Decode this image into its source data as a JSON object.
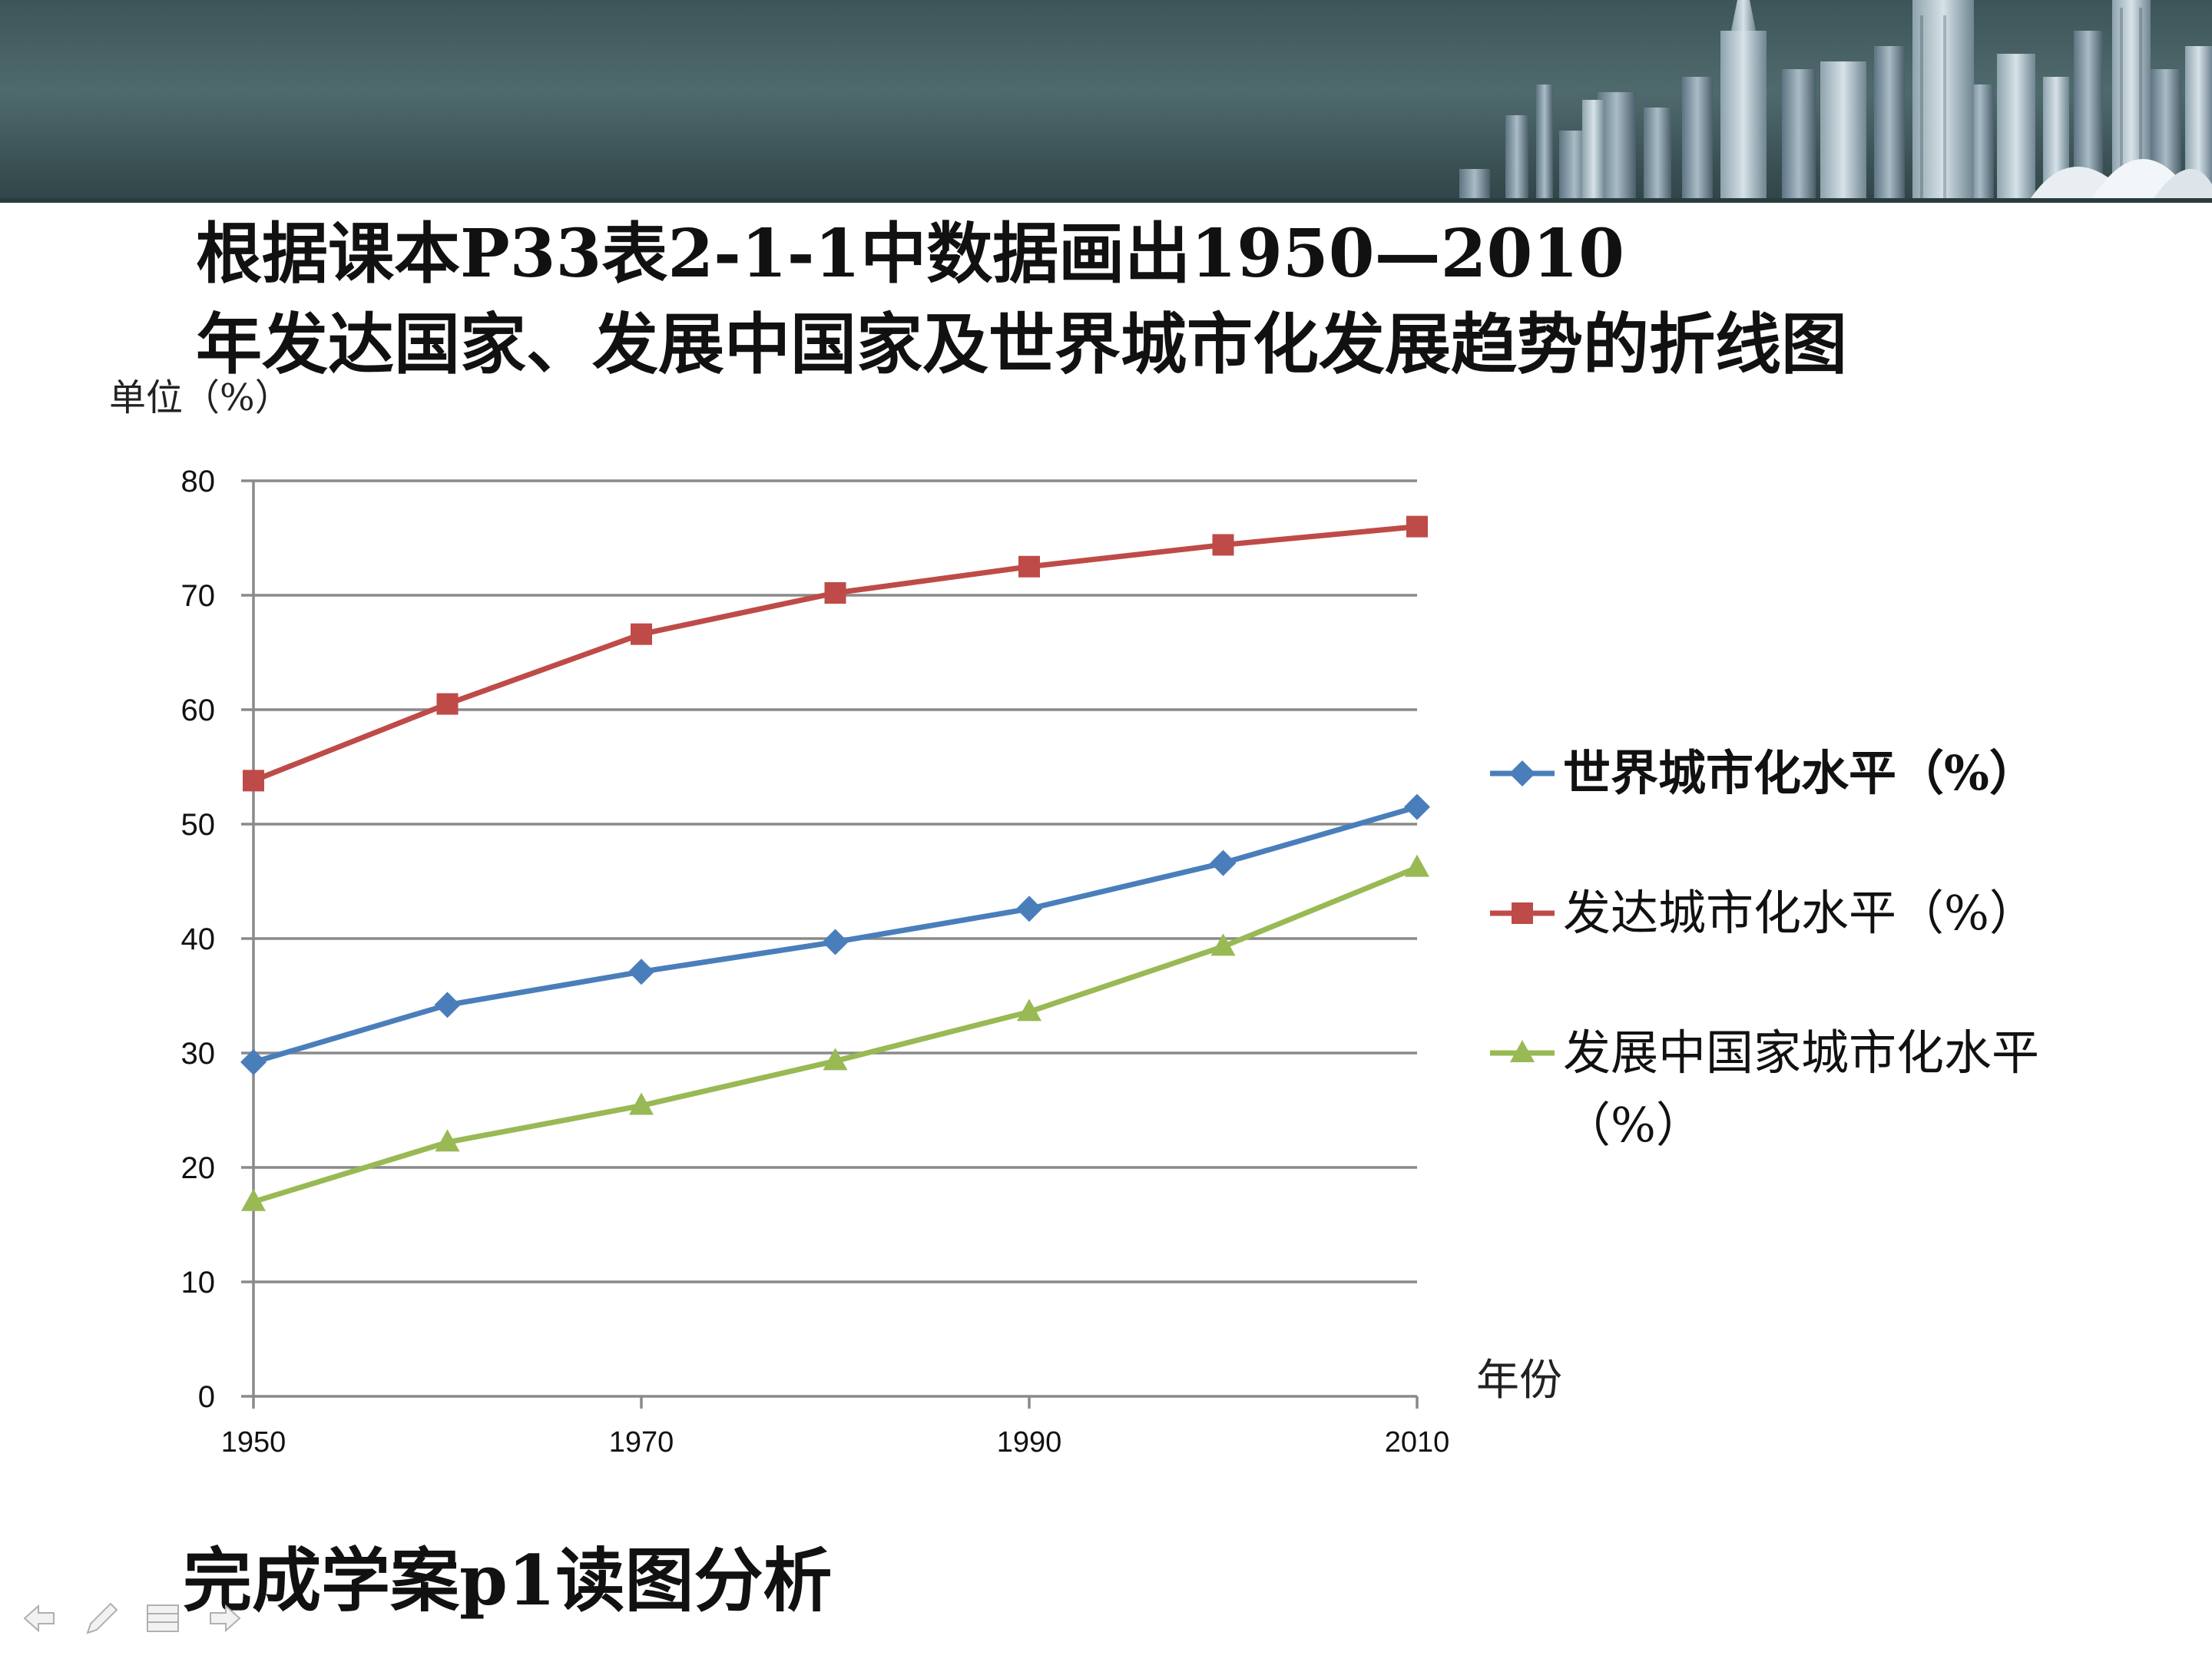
{
  "slide": {
    "title_lines": [
      "根据课本P33表2-1-1中数据画出1950—2010",
      "年发达国家、发展中国家及世界城市化发展趋势的折线图"
    ],
    "task": "完成学案p1读图分析",
    "nav_icons": [
      "arrow-left-icon",
      "pen-icon",
      "menu-icon",
      "arrow-right-icon"
    ]
  },
  "chart_data": {
    "type": "line",
    "ylabel": "单位（%）",
    "xlabel": "年份",
    "x": [
      1950,
      1960,
      1970,
      1980,
      1990,
      2000,
      2010
    ],
    "x_tick_labels": [
      "1950",
      "1970",
      "1990",
      "2010"
    ],
    "y_ticks": [
      0,
      10,
      20,
      30,
      40,
      50,
      60,
      70,
      80
    ],
    "ylim": [
      0,
      80
    ],
    "grid": true,
    "legend_position": "right",
    "series": [
      {
        "name": "世界城市化水平（%）",
        "color": "#4a7ebb",
        "marker": "diamond",
        "values": [
          29.2,
          34.2,
          37.1,
          39.7,
          42.6,
          46.6,
          51.5
        ]
      },
      {
        "name": "发达城市化水平（%）",
        "color": "#be4b48",
        "marker": "square",
        "values": [
          53.8,
          60.5,
          66.6,
          70.2,
          72.5,
          74.4,
          76.0
        ]
      },
      {
        "name": "发展中国家城市化水平（%）",
        "color": "#98b954",
        "marker": "triangle",
        "values": [
          17.0,
          22.2,
          25.4,
          29.3,
          33.6,
          39.3,
          46.2
        ]
      }
    ]
  }
}
